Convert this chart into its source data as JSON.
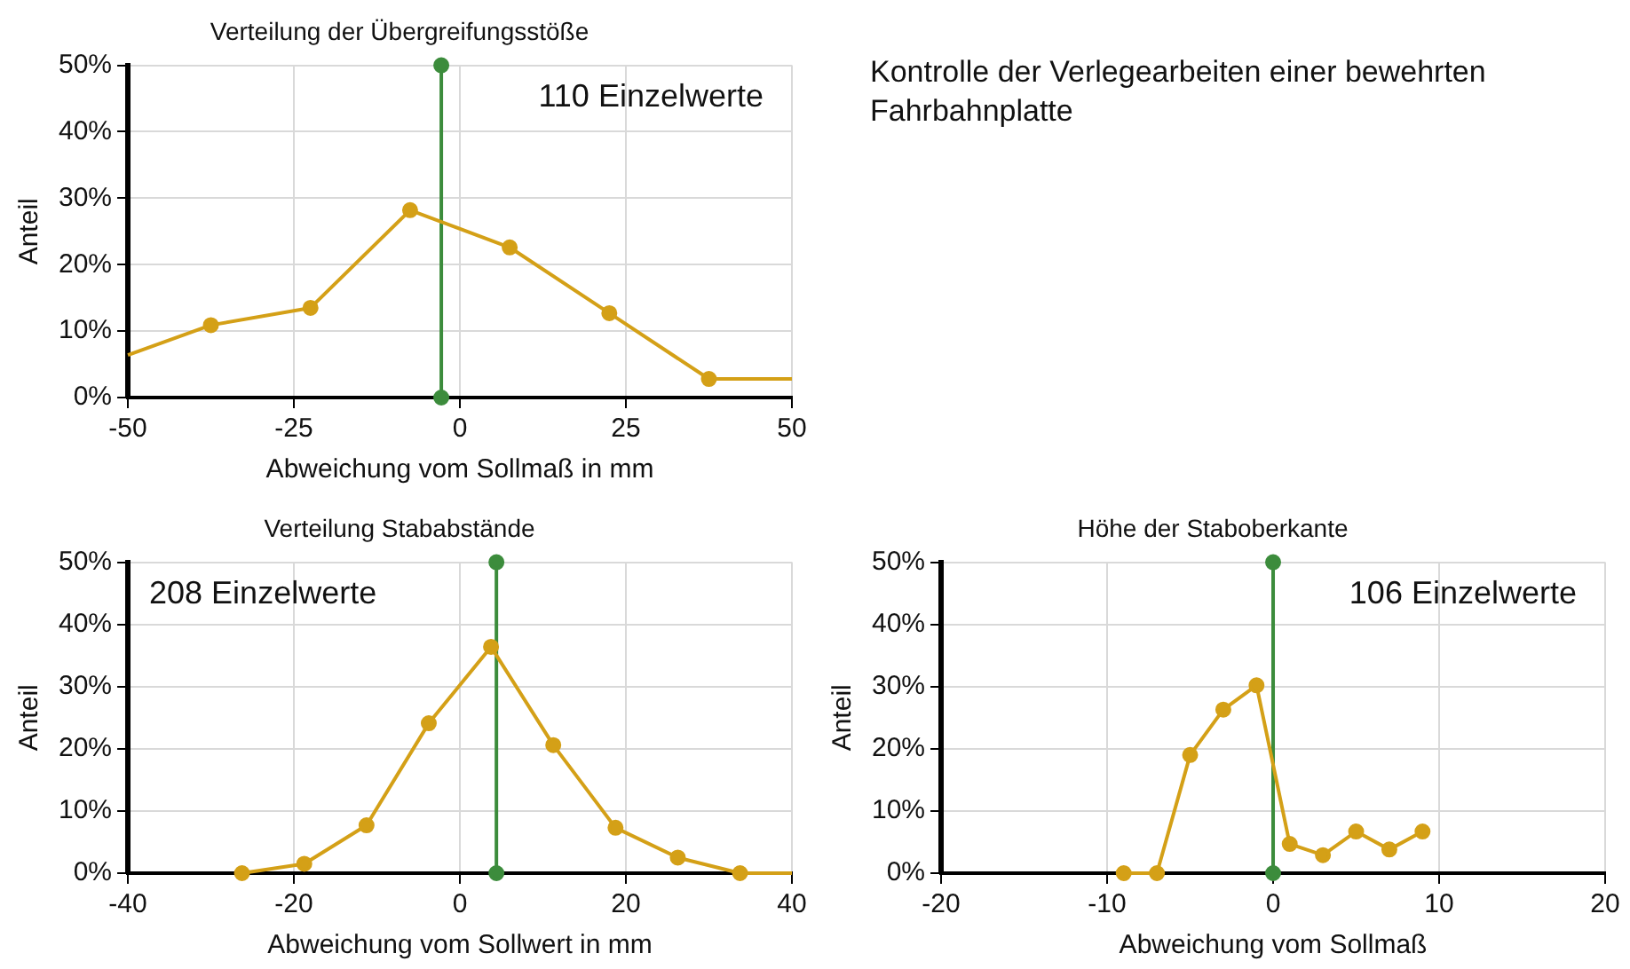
{
  "chart_data": [
    {
      "type": "line",
      "title": "Verteilung der Übergreifungsstöße",
      "xlabel": "Abweichung vom Sollmaß in mm",
      "ylabel": "Anteil",
      "xlim": [
        -50,
        50
      ],
      "xticks": [
        -50,
        -25,
        0,
        25,
        50
      ],
      "ylim": [
        0,
        50
      ],
      "yticks": [
        {
          "value": 0,
          "label": "0%"
        },
        {
          "value": 10,
          "label": "10%"
        },
        {
          "value": 20,
          "label": "20%"
        },
        {
          "value": 30,
          "label": "30%"
        },
        {
          "value": 40,
          "label": "40%"
        },
        {
          "value": 50,
          "label": "50%"
        }
      ],
      "grid": true,
      "annotations": [
        "110 Einzelwerte"
      ],
      "series": [
        {
          "color": "#d4a017",
          "marker": "circle",
          "x": [
            -37.5,
            -22.5,
            -7.5,
            7.5,
            22.5,
            37.5
          ],
          "values": [
            10.9,
            13.5,
            28.2,
            22.6,
            12.7,
            2.8
          ]
        },
        {
          "color": "#d4a017",
          "marker": "none",
          "x": [
            -50,
            -37.5
          ],
          "values": [
            6.4,
            10.9
          ]
        },
        {
          "color": "#d4a017",
          "marker": "none",
          "x": [
            37.5,
            50
          ],
          "values": [
            2.8,
            2.8
          ]
        },
        {
          "color": "#3c8c3c",
          "marker": "circle",
          "x": [
            -2.8,
            -2.8
          ],
          "values": [
            0,
            50
          ]
        }
      ]
    },
    {
      "type": "other",
      "title": "Kontrolle der Verlegearbeiten einer bewehrten Fahrbahnplatte"
    },
    {
      "type": "line",
      "title": "Verteilung Stababstände",
      "xlabel": "Abweichung vom Sollwert in mm",
      "ylabel": "Anteil",
      "xlim": [
        -40,
        40
      ],
      "xticks": [
        -40,
        -20,
        0,
        20,
        40
      ],
      "ylim": [
        0,
        50
      ],
      "yticks": [
        {
          "value": 0,
          "label": "0%"
        },
        {
          "value": 10,
          "label": "10%"
        },
        {
          "value": 20,
          "label": "20%"
        },
        {
          "value": 30,
          "label": "30%"
        },
        {
          "value": 40,
          "label": "40%"
        },
        {
          "value": 50,
          "label": "50%"
        }
      ],
      "grid": true,
      "annotations": [
        "208 Einzelwerte"
      ],
      "series": [
        {
          "color": "#d4a017",
          "marker": "circle",
          "x": [
            -26.25,
            -18.75,
            -11.25,
            -3.75,
            3.75,
            11.25,
            18.75,
            26.25,
            33.75
          ],
          "values": [
            0,
            1.5,
            7.7,
            24.1,
            36.4,
            20.6,
            7.3,
            2.5,
            0
          ]
        },
        {
          "color": "#d4a017",
          "marker": "none",
          "x": [
            33.75,
            40
          ],
          "values": [
            0,
            0
          ]
        },
        {
          "color": "#3c8c3c",
          "marker": "circle",
          "x": [
            4.4,
            4.4
          ],
          "values": [
            0,
            50
          ]
        }
      ]
    },
    {
      "type": "line",
      "title": "Höhe der Staboberkante",
      "xlabel": "Abweichung vom Sollmaß",
      "ylabel": "Anteil",
      "xlim": [
        -20,
        20
      ],
      "xticks": [
        -20,
        -10,
        0,
        10,
        20
      ],
      "ylim": [
        0,
        50
      ],
      "yticks": [
        {
          "value": 0,
          "label": "0%"
        },
        {
          "value": 10,
          "label": "10%"
        },
        {
          "value": 20,
          "label": "20%"
        },
        {
          "value": 30,
          "label": "30%"
        },
        {
          "value": 40,
          "label": "40%"
        },
        {
          "value": 50,
          "label": "50%"
        }
      ],
      "grid": true,
      "annotations": [
        "106 Einzelwerte"
      ],
      "series": [
        {
          "color": "#d4a017",
          "marker": "circle",
          "x": [
            -9,
            -7,
            -5,
            -3,
            -1,
            1,
            3,
            5,
            7,
            9
          ],
          "values": [
            0,
            0,
            19.0,
            26.3,
            30.2,
            4.7,
            2.9,
            6.7,
            3.8,
            6.7
          ]
        },
        {
          "color": "#3c8c3c",
          "marker": "circle",
          "x": [
            0,
            0
          ],
          "values": [
            0,
            50
          ]
        }
      ]
    }
  ]
}
